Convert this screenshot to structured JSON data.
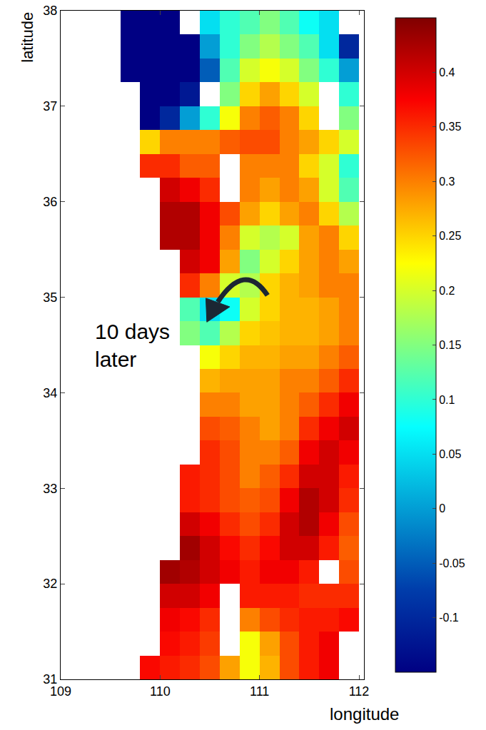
{
  "chart_data": {
    "type": "heatmap",
    "xlabel": "longitude",
    "ylabel": "latitude",
    "annotations": [
      {
        "text": "10 days\nlater"
      }
    ],
    "color": "Jet",
    "grid": false,
    "xlim": [
      109,
      112.05
    ],
    "ylim": [
      31,
      38
    ],
    "xticks": [
      109,
      110,
      111,
      112
    ],
    "yticks": [
      31,
      32,
      33,
      34,
      35,
      36,
      37,
      38
    ],
    "colorbar_range": [
      -0.15,
      0.45
    ],
    "colorbar_ticks": [
      -0.1,
      -0.05,
      0,
      0.05,
      0.1,
      0.15,
      0.2,
      0.25,
      0.3,
      0.35,
      0.4
    ],
    "x": [
      109.1,
      109.3,
      109.5,
      109.7,
      109.9,
      110.1,
      110.3,
      110.5,
      110.7,
      110.9,
      111.1,
      111.3,
      111.5,
      111.7,
      111.9
    ],
    "y": [
      31.125,
      31.375,
      31.625,
      31.875,
      32.125,
      32.375,
      32.625,
      32.875,
      33.125,
      33.375,
      33.625,
      33.875,
      34.125,
      34.375,
      34.625,
      34.875,
      35.125,
      35.375,
      35.625,
      35.875,
      36.125,
      36.375,
      36.625,
      36.875,
      37.125,
      37.375,
      37.625,
      37.875
    ],
    "z": [
      [
        null,
        null,
        null,
        null,
        0.37,
        0.36,
        0.35,
        0.33,
        0.28,
        0.22,
        0.27,
        0.33,
        0.36,
        0.38,
        null
      ],
      [
        null,
        null,
        null,
        null,
        null,
        0.37,
        0.36,
        0.34,
        null,
        0.22,
        0.28,
        0.33,
        0.36,
        0.38,
        null
      ],
      [
        null,
        null,
        null,
        null,
        null,
        0.38,
        0.37,
        0.35,
        null,
        0.3,
        0.33,
        0.35,
        0.36,
        0.36,
        0.37
      ],
      [
        null,
        null,
        null,
        null,
        null,
        0.4,
        0.4,
        0.38,
        null,
        0.36,
        0.36,
        0.36,
        0.35,
        0.35,
        0.35
      ],
      [
        null,
        null,
        null,
        null,
        null,
        0.43,
        0.42,
        0.4,
        0.38,
        0.36,
        0.38,
        0.38,
        0.36,
        null,
        0.33
      ],
      [
        null,
        null,
        null,
        null,
        null,
        null,
        0.43,
        0.4,
        0.37,
        0.35,
        0.37,
        0.4,
        0.4,
        0.36,
        0.32
      ],
      [
        null,
        null,
        null,
        null,
        null,
        null,
        0.4,
        0.38,
        0.35,
        0.33,
        0.35,
        0.4,
        0.42,
        0.38,
        0.33
      ],
      [
        null,
        null,
        null,
        null,
        null,
        null,
        0.36,
        0.35,
        0.33,
        0.32,
        0.33,
        0.38,
        0.42,
        0.4,
        0.35
      ],
      [
        null,
        null,
        null,
        null,
        null,
        null,
        0.36,
        0.35,
        0.33,
        0.3,
        0.32,
        0.35,
        0.4,
        0.4,
        0.36
      ],
      [
        null,
        null,
        null,
        null,
        null,
        null,
        null,
        0.35,
        0.33,
        0.3,
        0.3,
        0.32,
        0.38,
        0.4,
        0.38
      ],
      [
        null,
        null,
        null,
        null,
        null,
        null,
        null,
        0.33,
        0.32,
        0.3,
        0.28,
        0.3,
        0.35,
        0.38,
        0.4
      ],
      [
        null,
        null,
        null,
        null,
        null,
        null,
        null,
        0.3,
        0.3,
        0.28,
        0.28,
        0.3,
        0.32,
        0.35,
        0.38
      ],
      [
        null,
        null,
        null,
        null,
        null,
        null,
        null,
        0.27,
        0.28,
        0.28,
        0.28,
        0.3,
        0.3,
        0.32,
        0.35
      ],
      [
        null,
        null,
        null,
        null,
        null,
        null,
        null,
        0.22,
        0.25,
        0.27,
        0.27,
        0.28,
        0.28,
        0.3,
        0.32
      ],
      [
        null,
        null,
        null,
        null,
        null,
        null,
        0.15,
        0.12,
        0.18,
        0.25,
        0.26,
        0.27,
        0.27,
        0.28,
        0.3
      ],
      [
        null,
        null,
        null,
        null,
        null,
        null,
        0.12,
        0.05,
        0.08,
        0.2,
        0.25,
        0.27,
        0.27,
        0.28,
        0.3
      ],
      [
        null,
        null,
        null,
        null,
        null,
        null,
        0.35,
        0.3,
        0.2,
        0.18,
        0.25,
        0.27,
        0.28,
        0.3,
        0.3
      ],
      [
        null,
        null,
        null,
        null,
        null,
        null,
        0.4,
        0.38,
        0.28,
        0.15,
        0.2,
        0.25,
        0.28,
        0.3,
        0.28
      ],
      [
        null,
        null,
        null,
        null,
        null,
        0.42,
        0.42,
        0.38,
        0.3,
        0.2,
        0.18,
        0.2,
        0.28,
        0.3,
        0.25
      ],
      [
        null,
        null,
        null,
        null,
        null,
        0.42,
        0.42,
        0.38,
        0.33,
        0.28,
        0.25,
        0.28,
        0.3,
        0.25,
        0.18
      ],
      [
        null,
        null,
        null,
        null,
        null,
        0.4,
        0.38,
        0.35,
        null,
        0.3,
        0.28,
        0.3,
        0.28,
        0.2,
        0.12
      ],
      [
        null,
        null,
        null,
        null,
        0.35,
        0.35,
        0.32,
        0.32,
        null,
        0.3,
        0.3,
        0.3,
        0.25,
        0.2,
        0.1
      ],
      [
        null,
        null,
        null,
        null,
        0.25,
        0.3,
        0.3,
        0.3,
        0.32,
        0.33,
        0.33,
        0.3,
        0.28,
        0.25,
        0.2
      ],
      [
        null,
        null,
        null,
        null,
        -0.15,
        -0.1,
        0,
        0.1,
        0.22,
        0.3,
        0.32,
        0.3,
        0.25,
        null,
        0.15
      ],
      [
        null,
        null,
        null,
        null,
        -0.15,
        -0.15,
        -0.12,
        null,
        0.15,
        0.25,
        0.28,
        0.25,
        0.2,
        null,
        0.1
      ],
      [
        null,
        null,
        null,
        -0.15,
        -0.15,
        -0.15,
        -0.15,
        -0.05,
        0.12,
        0.2,
        0.22,
        0.2,
        0.15,
        0.1,
        0
      ],
      [
        null,
        null,
        null,
        -0.15,
        -0.15,
        -0.15,
        -0.15,
        0,
        0.1,
        0.15,
        0.18,
        0.15,
        0.12,
        0.05,
        -0.1
      ],
      [
        null,
        null,
        null,
        -0.15,
        -0.15,
        -0.15,
        null,
        0.05,
        0.1,
        0.12,
        0.15,
        0.12,
        0.08,
        0.05,
        null
      ]
    ]
  }
}
